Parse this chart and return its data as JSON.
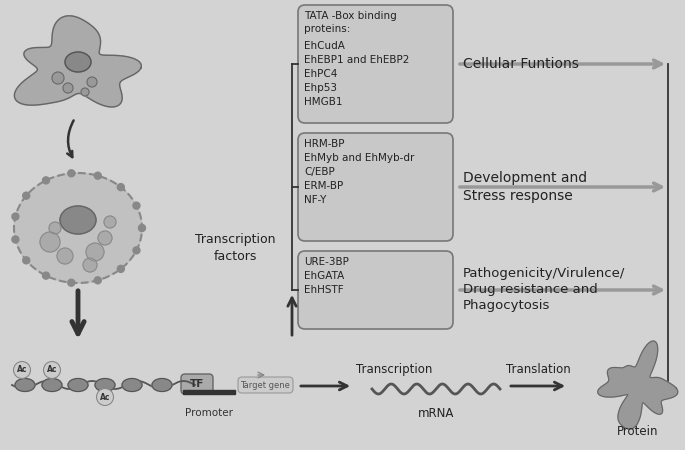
{
  "bg_color": "#d3d3d3",
  "box_fill": "#c8c8c8",
  "box_edge": "#666666",
  "dark_gray": "#333333",
  "mid_gray": "#777777",
  "light_gray": "#aaaaaa",
  "arrow_gray": "#999999",
  "box1_title": "TATA -Box binding\nproteins:",
  "box1_items": "EhCudA\nEhEBP1 and EhEBP2\nEhPC4\nEhp53\nHMGB1",
  "box1_label": "Cellular Funtions",
  "box2_title": "HRM-BP\nEhMyb and EhMyb-dr\nC/EBP\nERM-BP\nNF-Y",
  "box2_label": "Development and\nStress response",
  "box3_title": "URE-3BP\nEhGATA\nEhHSTF",
  "box3_label": "Pathogenicity/Virulence/\nDrug resistance and\nPhagocytosis",
  "tf_label": "TF",
  "promoter_label": "Promoter",
  "target_gene_label": "Target gene",
  "transcription_label": "Transcription",
  "mrna_label": "mRNA",
  "translation_label": "Translation",
  "protein_label": "Protein",
  "tf_label2": "Transcription\nfactors"
}
